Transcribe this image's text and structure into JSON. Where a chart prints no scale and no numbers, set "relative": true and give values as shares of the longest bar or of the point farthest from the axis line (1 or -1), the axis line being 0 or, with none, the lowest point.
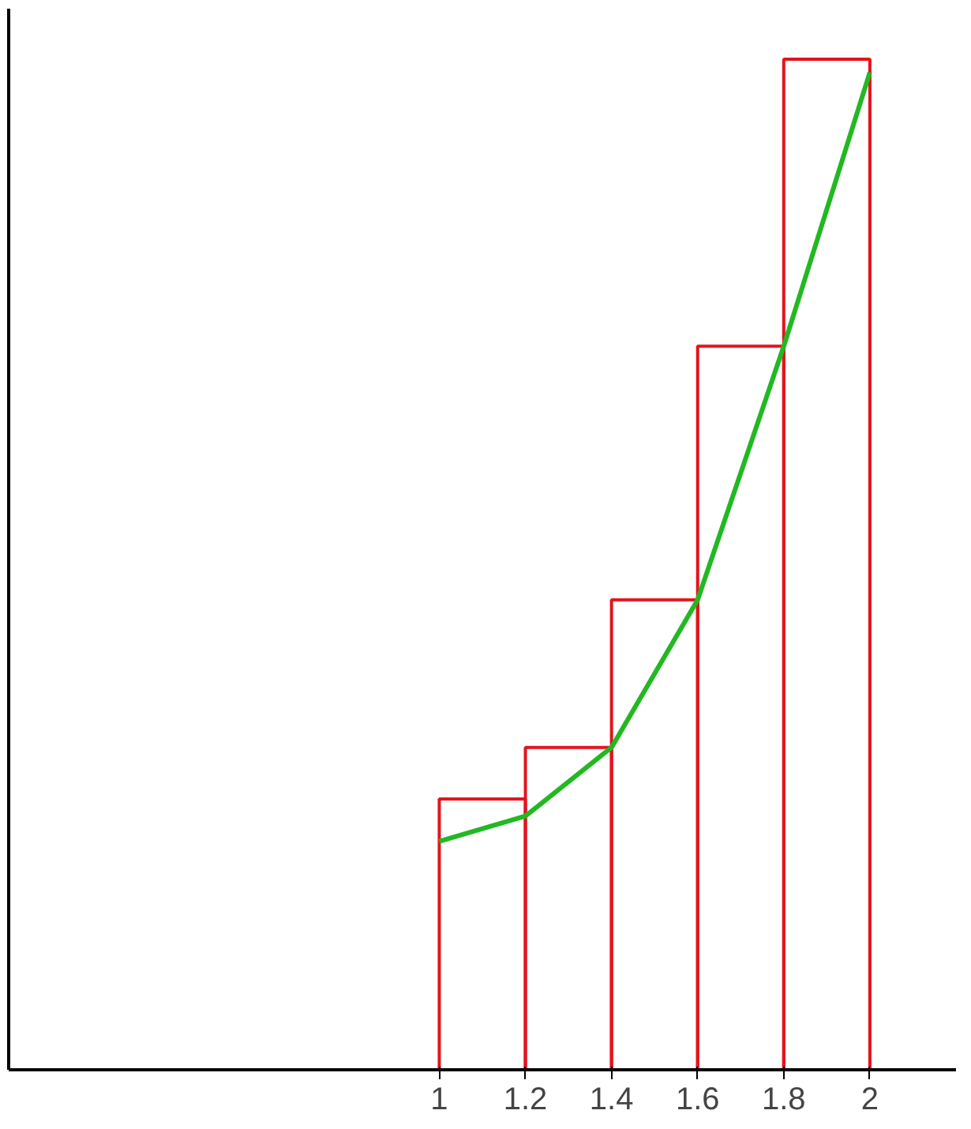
{
  "chart_data": {
    "type": "histogram",
    "relative": true,
    "bins": [
      1,
      1.2,
      1.4,
      1.6,
      1.8,
      2
    ],
    "values": [
      0.268,
      0.319,
      0.465,
      0.716,
      1.0
    ],
    "color": "#e3141c",
    "xlim": [
      0,
      2.2
    ],
    "xticks": [
      1,
      1.2,
      1.4,
      1.6,
      1.8,
      2
    ],
    "series": [
      {
        "type": "line",
        "color": "#22b822",
        "x": [
          1,
          1.2,
          1.4,
          1.6,
          1.8,
          2
        ],
        "values": [
          0.226,
          0.251,
          0.319,
          0.465,
          0.716,
          0.987
        ]
      }
    ],
    "grid": false,
    "tick_labels": "x"
  }
}
